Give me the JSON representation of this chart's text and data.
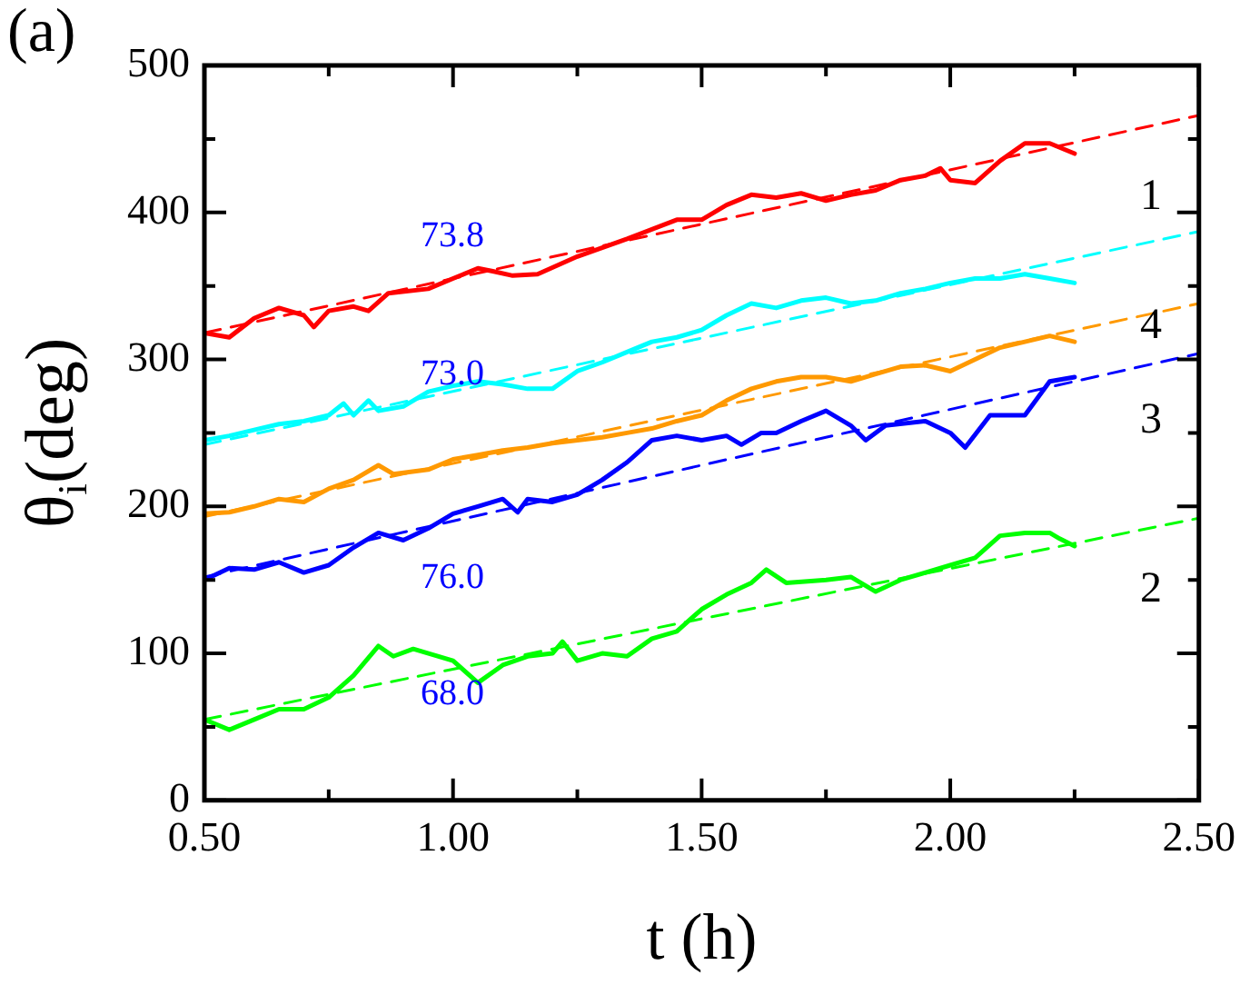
{
  "chart_data": {
    "type": "line",
    "xlabel": "t (h)",
    "ylabel": "θ$_{i}$(deg)",
    "xlim": [
      0.5,
      2.5
    ],
    "xticks": [
      {
        "value": 0.5,
        "label": "0.50"
      },
      {
        "value": 0.75,
        "label": null
      },
      {
        "value": 1.0,
        "label": "1.00"
      },
      {
        "value": 1.25,
        "label": null
      },
      {
        "value": 1.5,
        "label": "1.50"
      },
      {
        "value": 1.75,
        "label": null
      },
      {
        "value": 2.0,
        "label": "2.00"
      },
      {
        "value": 2.25,
        "label": null
      },
      {
        "value": 2.5,
        "label": "2.50"
      }
    ],
    "ylim": [
      0,
      500
    ],
    "yticks": [
      0,
      {
        "value": 50,
        "label": null
      },
      100,
      {
        "value": 150,
        "label": null
      },
      200,
      {
        "value": 250,
        "label": null
      },
      300,
      {
        "value": 350,
        "label": null
      },
      400,
      {
        "value": 450,
        "label": null
      },
      500
    ],
    "grid": false,
    "legend": false,
    "marker": "none",
    "series": [
      {
        "name": "1",
        "color": "#ff0000",
        "line_style": "solid",
        "x": [
          0.5,
          0.55,
          0.6,
          0.65,
          0.7,
          0.72,
          0.75,
          0.8,
          0.83,
          0.87,
          0.95,
          1.0,
          1.05,
          1.08,
          1.12,
          1.17,
          1.25,
          1.35,
          1.45,
          1.5,
          1.55,
          1.6,
          1.65,
          1.7,
          1.75,
          1.8,
          1.85,
          1.9,
          1.95,
          1.98,
          2.0,
          2.05,
          2.1,
          2.15,
          2.2,
          2.25
        ],
        "values": [
          318,
          315,
          328,
          335,
          330,
          322,
          333,
          336,
          333,
          345,
          348,
          355,
          362,
          360,
          357,
          358,
          370,
          382,
          395,
          395,
          405,
          412,
          410,
          413,
          408,
          412,
          415,
          422,
          425,
          430,
          422,
          420,
          435,
          447,
          447,
          440
        ]
      },
      {
        "color": "#ff0000",
        "line_style": "dashed",
        "x": [
          0.5,
          2.5
        ],
        "values": [
          318,
          466
        ]
      },
      {
        "name": "4",
        "color": "#00ffff",
        "line_style": "solid",
        "x": [
          0.5,
          0.55,
          0.6,
          0.65,
          0.7,
          0.75,
          0.78,
          0.8,
          0.83,
          0.85,
          0.9,
          0.95,
          1.0,
          1.05,
          1.1,
          1.15,
          1.2,
          1.25,
          1.3,
          1.35,
          1.4,
          1.45,
          1.5,
          1.55,
          1.6,
          1.65,
          1.7,
          1.75,
          1.8,
          1.85,
          1.9,
          1.95,
          2.0,
          2.05,
          2.1,
          2.15,
          2.2,
          2.25
        ],
        "values": [
          245,
          248,
          252,
          256,
          258,
          262,
          270,
          262,
          272,
          265,
          268,
          278,
          282,
          285,
          283,
          280,
          280,
          292,
          298,
          305,
          312,
          315,
          320,
          330,
          338,
          335,
          340,
          342,
          338,
          340,
          345,
          348,
          352,
          355,
          355,
          358,
          355,
          352
        ]
      },
      {
        "color": "#00ffff",
        "line_style": "dashed",
        "x": [
          0.5,
          2.5
        ],
        "values": [
          242,
          387
        ]
      },
      {
        "color": "#ff9900",
        "line_style": "solid",
        "x": [
          0.5,
          0.55,
          0.6,
          0.65,
          0.7,
          0.75,
          0.8,
          0.85,
          0.88,
          0.95,
          1.0,
          1.05,
          1.1,
          1.15,
          1.2,
          1.25,
          1.3,
          1.35,
          1.4,
          1.45,
          1.5,
          1.55,
          1.6,
          1.65,
          1.7,
          1.75,
          1.8,
          1.85,
          1.9,
          1.95,
          2.0,
          2.05,
          2.1,
          2.15,
          2.2,
          2.25
        ],
        "values": [
          195,
          196,
          200,
          205,
          203,
          212,
          218,
          228,
          222,
          225,
          232,
          235,
          238,
          240,
          243,
          245,
          247,
          250,
          253,
          258,
          262,
          272,
          280,
          285,
          288,
          288,
          285,
          290,
          295,
          296,
          292,
          300,
          308,
          312,
          316,
          312
        ]
      },
      {
        "color": "#ff9900",
        "line_style": "dashed",
        "x": [
          0.5,
          2.5
        ],
        "values": [
          193,
          338
        ]
      },
      {
        "name": "3",
        "color": "#0000ff",
        "line_style": "solid",
        "x": [
          0.5,
          0.55,
          0.6,
          0.65,
          0.7,
          0.75,
          0.8,
          0.85,
          0.9,
          0.95,
          1.0,
          1.05,
          1.1,
          1.13,
          1.15,
          1.2,
          1.25,
          1.3,
          1.35,
          1.4,
          1.45,
          1.5,
          1.55,
          1.58,
          1.62,
          1.65,
          1.7,
          1.75,
          1.8,
          1.83,
          1.87,
          1.95,
          2.0,
          2.03,
          2.08,
          2.15,
          2.2,
          2.25
        ],
        "values": [
          150,
          158,
          157,
          162,
          155,
          160,
          172,
          182,
          177,
          185,
          195,
          200,
          205,
          196,
          205,
          203,
          208,
          218,
          230,
          245,
          248,
          245,
          248,
          242,
          250,
          250,
          258,
          265,
          255,
          245,
          255,
          258,
          250,
          240,
          262,
          262,
          285,
          288
        ]
      },
      {
        "color": "#0000ff",
        "line_style": "dashed",
        "x": [
          0.5,
          2.5
        ],
        "values": [
          152,
          304
        ]
      },
      {
        "name": "2",
        "color": "#00ff00",
        "line_style": "solid",
        "x": [
          0.5,
          0.55,
          0.6,
          0.65,
          0.7,
          0.75,
          0.8,
          0.85,
          0.88,
          0.92,
          1.0,
          1.05,
          1.1,
          1.15,
          1.2,
          1.22,
          1.25,
          1.3,
          1.35,
          1.4,
          1.45,
          1.5,
          1.55,
          1.6,
          1.63,
          1.67,
          1.75,
          1.8,
          1.85,
          1.9,
          1.95,
          2.0,
          2.05,
          2.1,
          2.15,
          2.2,
          2.22,
          2.25
        ],
        "values": [
          55,
          48,
          55,
          62,
          62,
          70,
          85,
          105,
          98,
          103,
          95,
          80,
          92,
          98,
          100,
          108,
          95,
          100,
          98,
          110,
          115,
          130,
          140,
          148,
          157,
          148,
          150,
          152,
          142,
          150,
          155,
          160,
          165,
          180,
          182,
          182,
          178,
          173
        ]
      },
      {
        "color": "#00ff00",
        "line_style": "dashed",
        "x": [
          0.5,
          2.5
        ],
        "values": [
          55,
          192
        ]
      }
    ],
    "annotations": [
      "(a)",
      "73.8",
      "73.0",
      "76.0",
      "68.0"
    ]
  }
}
